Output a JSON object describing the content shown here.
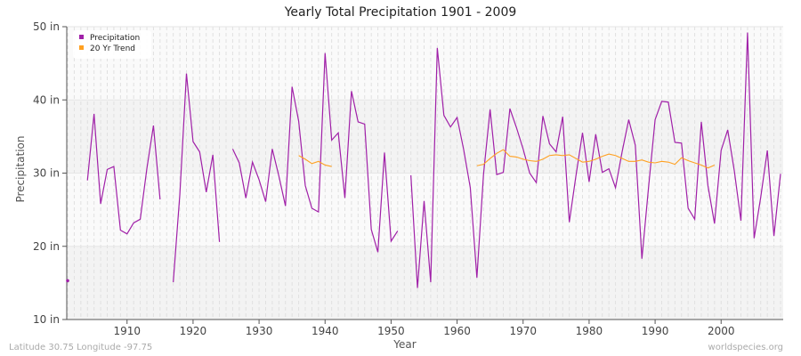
{
  "chart_data": {
    "type": "line",
    "title": "Yearly Total Precipitation 1901 - 2009",
    "xlabel": "Year",
    "ylabel": "Precipitation",
    "xlim": [
      1901,
      2009
    ],
    "ylim": [
      10,
      50
    ],
    "x_ticks": [
      1910,
      1920,
      1930,
      1940,
      1950,
      1960,
      1970,
      1980,
      1990,
      2000
    ],
    "y_ticks": [
      "10 in",
      "20 in",
      "30 in",
      "40 in",
      "50 in"
    ],
    "grid": true,
    "legend_position": "top-left",
    "colors": {
      "precipitation": "#a020a8",
      "trend": "#ffa020"
    },
    "series": [
      {
        "name": "Precipitation",
        "start_year": 1901,
        "values": [
          15.3,
          null,
          null,
          29.0,
          38.1,
          25.8,
          30.5,
          30.9,
          22.2,
          21.7,
          23.2,
          23.7,
          30.6,
          36.5,
          26.4,
          null,
          15.1,
          27.1,
          43.6,
          34.3,
          32.9,
          27.4,
          32.5,
          20.6,
          null,
          33.3,
          31.4,
          26.6,
          31.5,
          29.1,
          26.1,
          33.3,
          29.6,
          25.5,
          41.8,
          37.1,
          28.3,
          25.2,
          24.7,
          46.4,
          34.5,
          35.5,
          26.6,
          41.2,
          37.0,
          36.7,
          22.3,
          19.2,
          32.8,
          20.7,
          22.1,
          null,
          29.7,
          14.3,
          26.2,
          15.1,
          47.1,
          37.9,
          36.3,
          37.6,
          33.2,
          28.0,
          15.7,
          29.8,
          38.7,
          29.8,
          30.1,
          38.8,
          36.2,
          33.3,
          30.0,
          28.7,
          37.8,
          34.0,
          32.9,
          37.7,
          23.3,
          29.6,
          35.5,
          28.8,
          35.3,
          30.1,
          30.6,
          28.0,
          32.9,
          37.3,
          33.8,
          18.3,
          28.0,
          37.3,
          39.8,
          39.7,
          34.2,
          34.1,
          25.2,
          23.7,
          37.0,
          28.3,
          23.1,
          33.1,
          35.9,
          30.3,
          23.5,
          49.2,
          21.1,
          26.7,
          33.1,
          21.4,
          29.9
        ]
      },
      {
        "name": "20 Yr Trend",
        "segments": [
          {
            "start_year": 1936,
            "values": [
              32.4,
              31.9,
              31.3,
              31.6,
              31.1,
              30.9
            ]
          },
          {
            "start_year": 1963,
            "values": [
              31.0,
              31.2,
              32.0,
              32.7,
              33.2,
              32.3,
              32.2,
              31.9,
              31.7,
              31.6,
              31.9,
              32.4,
              32.5,
              32.4,
              32.5,
              32.0,
              31.5,
              31.6,
              31.9,
              32.3,
              32.6,
              32.4,
              32.0,
              31.6,
              31.6,
              31.8,
              31.5,
              31.4,
              31.6,
              31.5,
              31.2,
              32.1,
              31.7,
              31.4,
              31.1,
              30.7,
              31.1
            ]
          }
        ]
      }
    ]
  },
  "footer": {
    "location": "Latitude 30.75 Longitude -97.75",
    "source": "worldspecies.org"
  }
}
